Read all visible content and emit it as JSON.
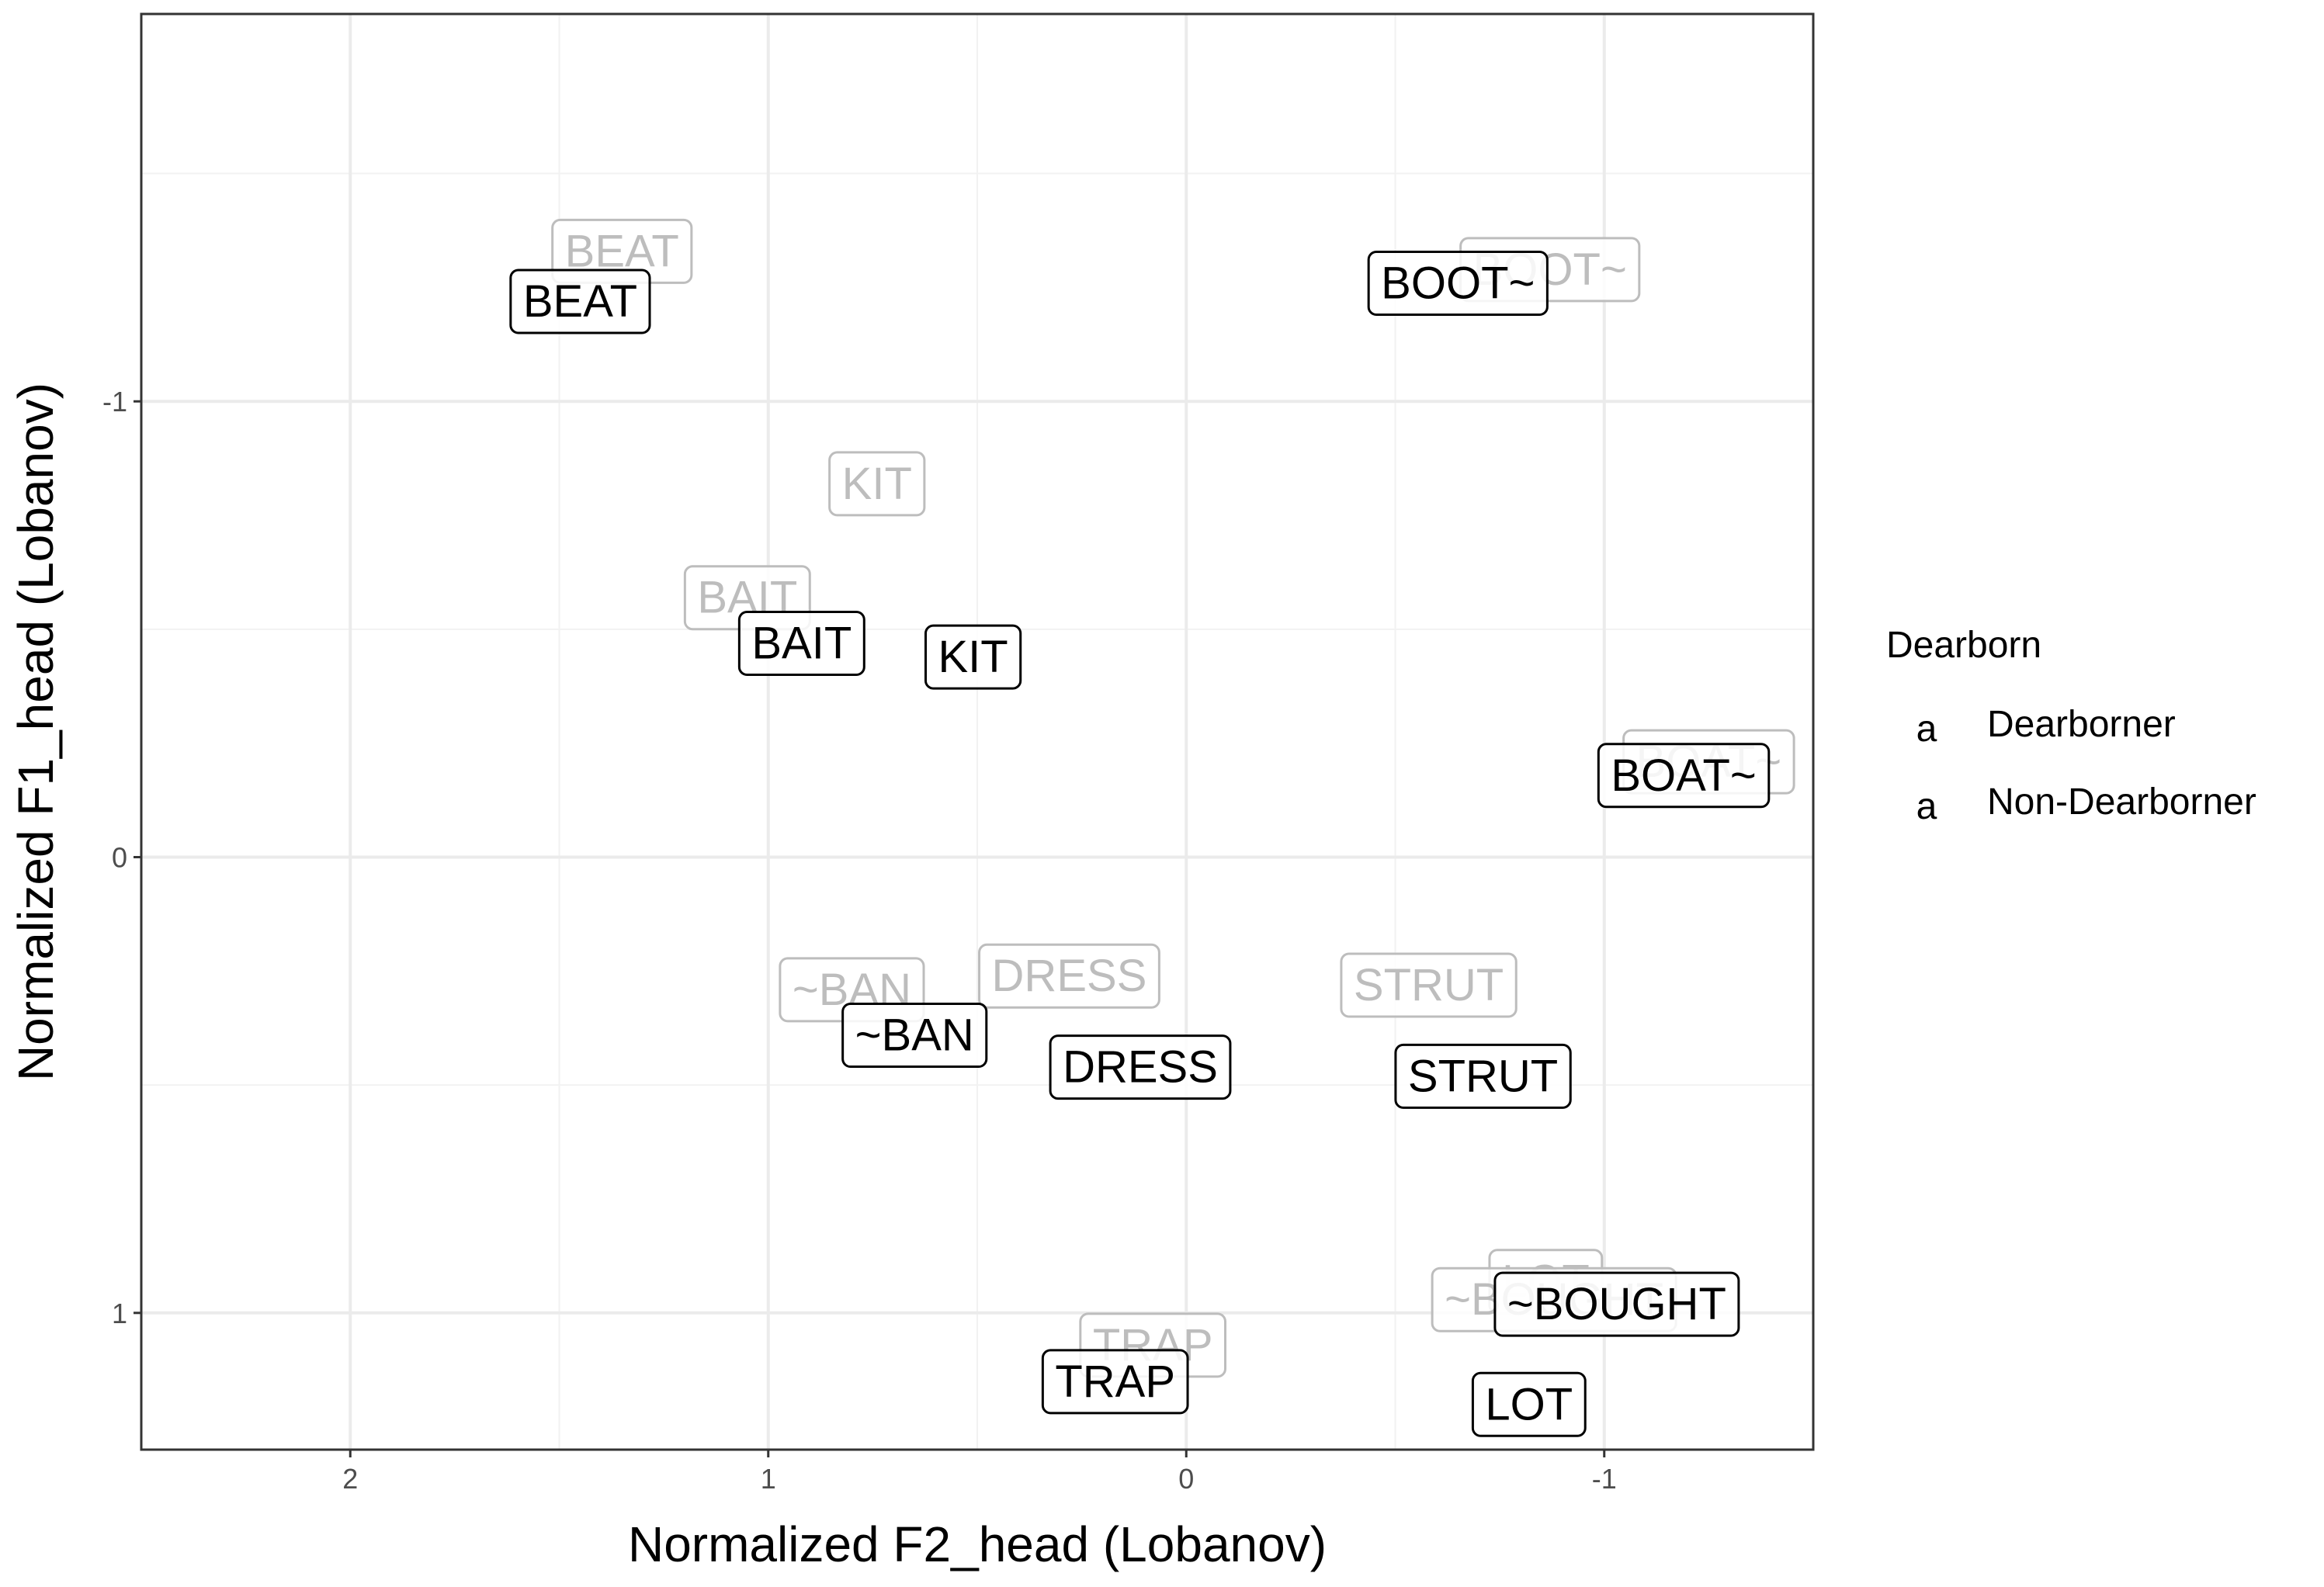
{
  "chart_data": {
    "type": "scatter",
    "xlabel": "Normalized F2_head (Lobanov)",
    "ylabel": "Normalized F1_head (Lobanov)",
    "x_reversed": true,
    "y_reversed": true,
    "xlim": [
      2.5,
      -1.5
    ],
    "ylim": [
      -1.85,
      1.3
    ],
    "x_ticks": [
      2,
      1,
      0,
      -1
    ],
    "x_tick_labels": [
      "2",
      "1",
      "0",
      "-1"
    ],
    "y_ticks": [
      -1,
      0,
      1
    ],
    "y_tick_labels": [
      "-1",
      "0",
      "1"
    ],
    "grid": true,
    "legend": {
      "title": "Dearborn",
      "position": "right",
      "key_glyph": "a",
      "entries": [
        {
          "name": "Dearborner",
          "color": "#000000"
        },
        {
          "name": "Non-Dearborner",
          "color": "#bdbdbd"
        }
      ]
    },
    "series": [
      {
        "name": "Non-Dearborner",
        "color": "#bdbdbd",
        "points": [
          {
            "label": "BEAT",
            "x": 1.35,
            "y": -1.33
          },
          {
            "label": "BOOT~",
            "x": -0.87,
            "y": -1.29
          },
          {
            "label": "KIT",
            "x": 0.74,
            "y": -0.82
          },
          {
            "label": "BAIT",
            "x": 1.05,
            "y": -0.57
          },
          {
            "label": "BOAT~",
            "x": -1.25,
            "y": -0.21
          },
          {
            "label": "~BAN",
            "x": 0.8,
            "y": 0.29
          },
          {
            "label": "DRESS",
            "x": 0.28,
            "y": 0.26
          },
          {
            "label": "STRUT",
            "x": -0.58,
            "y": 0.28
          },
          {
            "label": "LOT",
            "x": -0.86,
            "y": 0.93
          },
          {
            "label": "~BOUGHT",
            "x": -0.88,
            "y": 0.97
          },
          {
            "label": "TRAP",
            "x": 0.08,
            "y": 1.07
          }
        ]
      },
      {
        "name": "Dearborner",
        "color": "#000000",
        "points": [
          {
            "label": "BEAT",
            "x": 1.45,
            "y": -1.22
          },
          {
            "label": "BOOT~",
            "x": -0.65,
            "y": -1.26
          },
          {
            "label": "BAIT",
            "x": 0.92,
            "y": -0.47
          },
          {
            "label": "KIT",
            "x": 0.51,
            "y": -0.44
          },
          {
            "label": "BOAT~",
            "x": -1.19,
            "y": -0.18
          },
          {
            "label": "~BAN",
            "x": 0.65,
            "y": 0.39
          },
          {
            "label": "DRESS",
            "x": 0.11,
            "y": 0.46
          },
          {
            "label": "STRUT",
            "x": -0.71,
            "y": 0.48
          },
          {
            "label": "~BOUGHT",
            "x": -1.03,
            "y": 0.98
          },
          {
            "label": "LOT",
            "x": -0.82,
            "y": 1.2
          },
          {
            "label": "TRAP",
            "x": 0.17,
            "y": 1.15
          }
        ]
      }
    ]
  }
}
